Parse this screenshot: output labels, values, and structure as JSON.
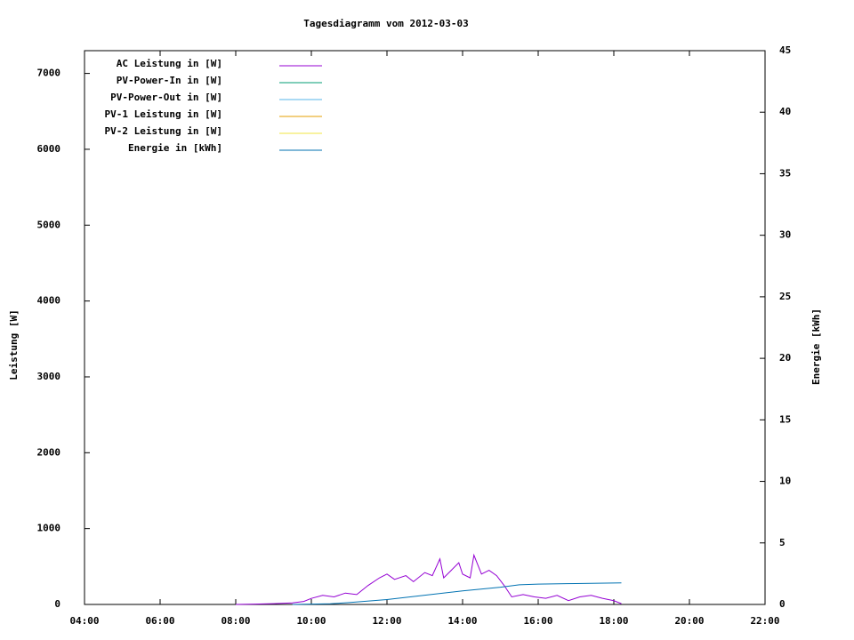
{
  "chart_data": {
    "type": "line",
    "title": "Tagesdiagramm vom 2012-03-03",
    "y_label": "Leistung [W]",
    "y2_label": "Energie [kWh]",
    "xlim": [
      4,
      22
    ],
    "xticks": [
      {
        "value": 4,
        "label": "04:00"
      },
      {
        "value": 6,
        "label": "06:00"
      },
      {
        "value": 8,
        "label": "08:00"
      },
      {
        "value": 10,
        "label": "10:00"
      },
      {
        "value": 12,
        "label": "12:00"
      },
      {
        "value": 14,
        "label": "14:00"
      },
      {
        "value": 16,
        "label": "16:00"
      },
      {
        "value": 18,
        "label": "18:00"
      },
      {
        "value": 20,
        "label": "20:00"
      },
      {
        "value": 22,
        "label": "22:00"
      }
    ],
    "ylim": [
      0,
      7300
    ],
    "yticks": [
      0,
      1000,
      2000,
      3000,
      4000,
      5000,
      6000,
      7000
    ],
    "y2lim": [
      0,
      45
    ],
    "y2ticks": [
      0,
      5,
      10,
      15,
      20,
      25,
      30,
      35,
      40,
      45
    ],
    "legend": "top-left",
    "series": [
      {
        "name": "AC Leistung in [W]",
        "color": "#9400d3",
        "x": [
          8.0,
          8.5,
          9.0,
          9.5,
          9.8,
          10.0,
          10.3,
          10.6,
          10.9,
          11.2,
          11.5,
          11.8,
          12.0,
          12.2,
          12.5,
          12.7,
          13.0,
          13.2,
          13.4,
          13.5,
          13.7,
          13.9,
          14.0,
          14.2,
          14.3,
          14.5,
          14.7,
          14.9,
          15.1,
          15.3,
          15.6,
          15.9,
          16.2,
          16.5,
          16.8,
          17.1,
          17.4,
          17.7,
          18.0,
          18.2
        ],
        "values": [
          0,
          5,
          10,
          20,
          40,
          80,
          120,
          100,
          150,
          130,
          250,
          350,
          400,
          330,
          380,
          300,
          420,
          380,
          600,
          350,
          450,
          550,
          400,
          350,
          650,
          400,
          450,
          380,
          250,
          100,
          130,
          100,
          80,
          120,
          50,
          100,
          120,
          80,
          50,
          10
        ]
      },
      {
        "name": "PV-Power-In in [W]",
        "color": "#009e73",
        "x": [],
        "values": []
      },
      {
        "name": "PV-Power-Out in [W]",
        "color": "#56b4e9",
        "x": [],
        "values": []
      },
      {
        "name": "PV-1 Leistung in [W]",
        "color": "#e69f00",
        "x": [],
        "values": []
      },
      {
        "name": "PV-2 Leistung in [W]",
        "color": "#f0e442",
        "x": [],
        "values": []
      },
      {
        "name": "Energie in [kWh]",
        "color": "#0072b2",
        "axis": "y2",
        "x": [
          9.5,
          10.5,
          11.0,
          12.0,
          13.0,
          14.0,
          15.0,
          15.5,
          16.0,
          17.0,
          18.2
        ],
        "values": [
          0,
          0.05,
          0.15,
          0.4,
          0.75,
          1.1,
          1.4,
          1.6,
          1.65,
          1.7,
          1.75
        ]
      }
    ]
  }
}
